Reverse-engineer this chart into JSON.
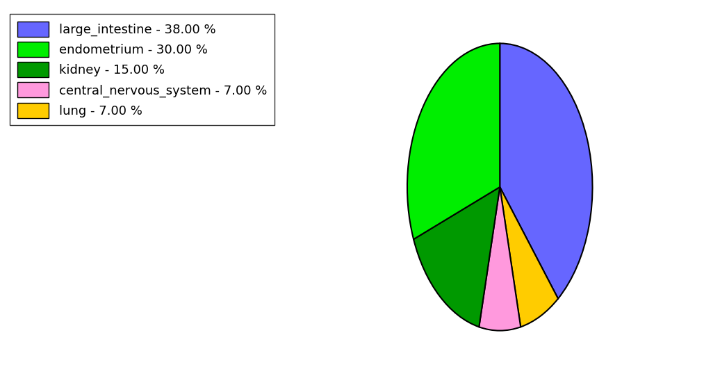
{
  "labels": [
    "large_intestine",
    "endometrium",
    "kidney",
    "central_nervous_system",
    "lung"
  ],
  "values": [
    38.0,
    30.0,
    15.0,
    7.0,
    7.0
  ],
  "colors": [
    "#6666ff",
    "#00ee00",
    "#009900",
    "#ff99dd",
    "#ffcc00"
  ],
  "legend_labels": [
    "large_intestine - 38.00 %",
    "endometrium - 30.00 %",
    "kidney - 15.00 %",
    "central_nervous_system - 7.00 %",
    "lung - 7.00 %"
  ],
  "figsize": [
    10.13,
    5.38
  ],
  "dpi": 100,
  "startangle": 90,
  "legend_fontsize": 13,
  "edge_color": "black",
  "edge_linewidth": 1.5
}
